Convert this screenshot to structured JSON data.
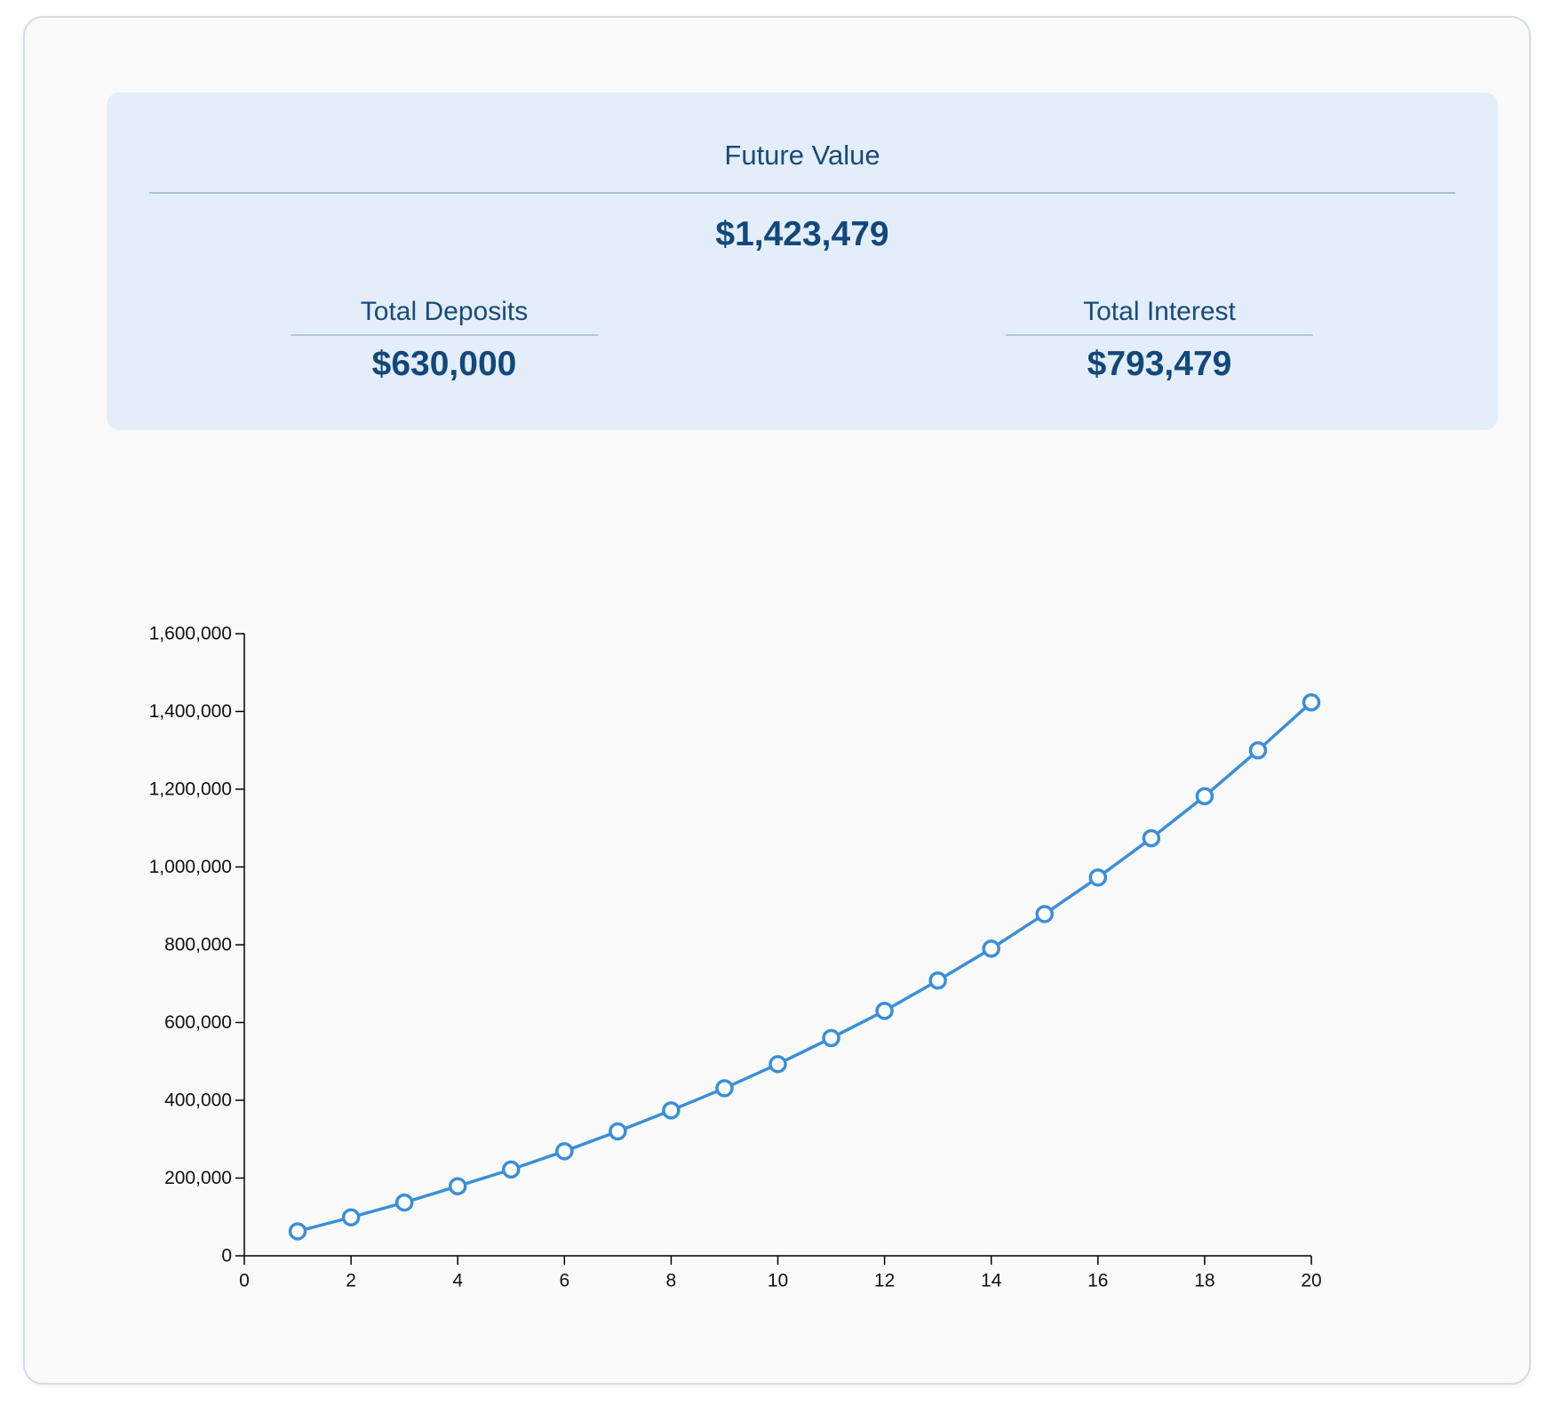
{
  "summary": {
    "future_value_label": "Future Value",
    "future_value": "$1,423,479",
    "total_deposits_label": "Total Deposits",
    "total_deposits": "$630,000",
    "total_interest_label": "Total Interest",
    "total_interest": "$793,479"
  },
  "chart_data": {
    "type": "line",
    "title": "",
    "xlabel": "",
    "ylabel": "",
    "xlim": [
      0,
      20
    ],
    "ylim": [
      0,
      1600000
    ],
    "x_ticks": [
      0,
      2,
      4,
      6,
      8,
      10,
      12,
      14,
      16,
      18,
      20
    ],
    "y_ticks": [
      0,
      200000,
      400000,
      600000,
      800000,
      1000000,
      1200000,
      1400000,
      1600000
    ],
    "x_tick_labels": [
      "0",
      "2",
      "4",
      "6",
      "8",
      "10",
      "12",
      "14",
      "16",
      "18",
      "20"
    ],
    "y_tick_labels": [
      "0",
      "200,000",
      "400,000",
      "600,000",
      "800,000",
      "1,000,000",
      "1,200,000",
      "1,400,000",
      "1,600,000"
    ],
    "grid": false,
    "series": [
      {
        "color": "#3a8fd6",
        "x": [
          1,
          2,
          3,
          4,
          5,
          6,
          7,
          8,
          9,
          10,
          11,
          12,
          13,
          14,
          15,
          16,
          17,
          18,
          19,
          20
        ],
        "values": [
          63000,
          99000,
          137000,
          179000,
          222000,
          269000,
          320000,
          374000,
          431000,
          493000,
          560000,
          630000,
          708000,
          790000,
          879000,
          973000,
          1074000,
          1182000,
          1300000,
          1423479
        ]
      }
    ]
  }
}
